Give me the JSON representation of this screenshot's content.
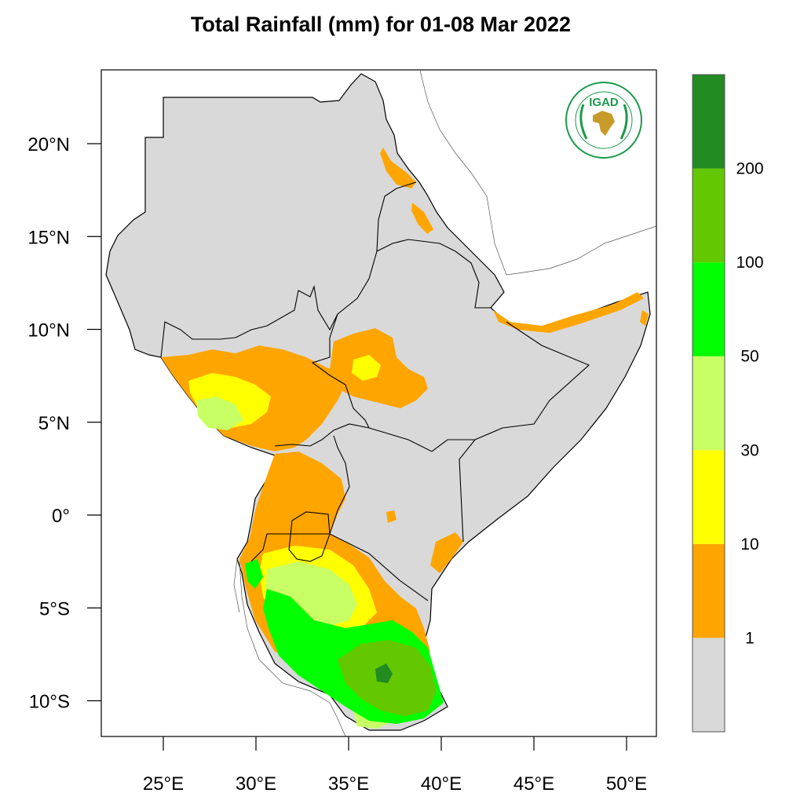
{
  "title": "Total Rainfall (mm) for 01-08 Mar 2022",
  "logo": {
    "text": "IGAD",
    "colors": {
      "ring": "#1a9a4a",
      "africa": "#c89a2a"
    }
  },
  "lat_ticks": [
    {
      "value": 20,
      "label": "20°N"
    },
    {
      "value": 15,
      "label": "15°N"
    },
    {
      "value": 10,
      "label": "10°N"
    },
    {
      "value": 5,
      "label": "5°N"
    },
    {
      "value": 0,
      "label": "0°"
    },
    {
      "value": -5,
      "label": "5°S"
    },
    {
      "value": -10,
      "label": "10°S"
    }
  ],
  "lon_ticks": [
    {
      "value": 25,
      "label": "25°E"
    },
    {
      "value": 30,
      "label": "30°E"
    },
    {
      "value": 35,
      "label": "35°E"
    },
    {
      "value": 40,
      "label": "40°E"
    },
    {
      "value": 45,
      "label": "45°E"
    },
    {
      "value": 50,
      "label": "50°E"
    }
  ],
  "colorbar": {
    "bins": [
      {
        "range": "<1",
        "color": "#d9d9d9"
      },
      {
        "range": "1-10",
        "color": "#ffa500"
      },
      {
        "range": "10-30",
        "color": "#ffff00"
      },
      {
        "range": "30-50",
        "color": "#c8ff64"
      },
      {
        "range": "50-100",
        "color": "#00ff00"
      },
      {
        "range": "100-200",
        "color": "#64c800"
      },
      {
        "range": ">200",
        "color": "#228b22"
      }
    ],
    "labels": [
      "1",
      "10",
      "30",
      "50",
      "100",
      "200"
    ]
  },
  "colors": {
    "land": "#d9d9d9",
    "border": "#000000"
  }
}
